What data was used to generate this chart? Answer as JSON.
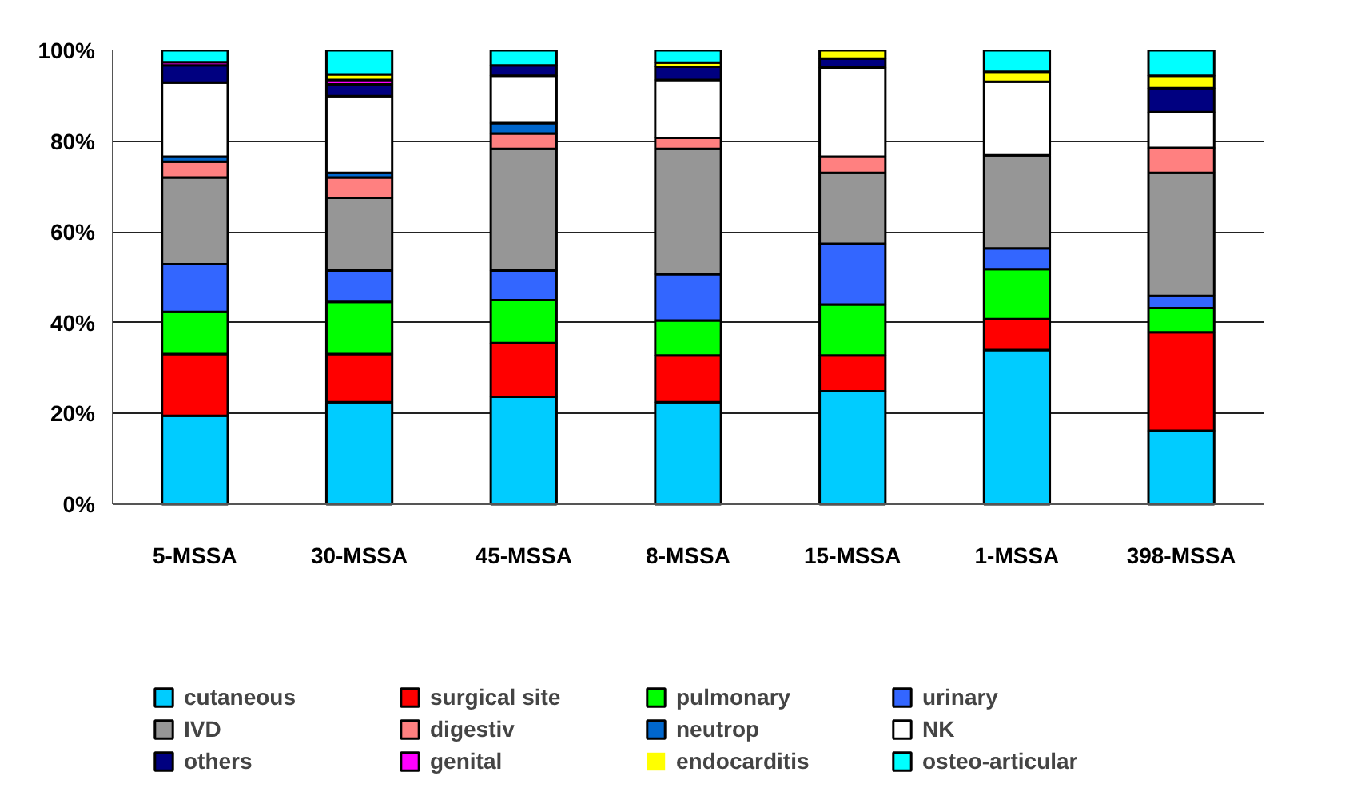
{
  "chart_data": {
    "type": "bar",
    "stacked": true,
    "categories": [
      "5-MSSA",
      "30-MSSA",
      "45-MSSA",
      "8-MSSA",
      "15-MSSA",
      "1-MSSA",
      "398-MSSA"
    ],
    "series": [
      {
        "name": "cutaneous",
        "color": "#00ccff",
        "values": [
          19.5,
          22.5,
          23.7,
          22.5,
          24.9,
          34.0,
          16.2
        ]
      },
      {
        "name": "surgical site",
        "color": "#ff0000",
        "values": [
          13.6,
          10.6,
          11.8,
          10.3,
          7.9,
          6.8,
          21.7
        ]
      },
      {
        "name": "pulmonary",
        "color": "#00ff00",
        "values": [
          9.3,
          11.5,
          9.5,
          7.7,
          11.2,
          11.0,
          5.3
        ]
      },
      {
        "name": "urinary",
        "color": "#3366ff",
        "values": [
          10.5,
          6.9,
          6.5,
          10.2,
          13.4,
          4.6,
          2.7
        ]
      },
      {
        "name": "IVD",
        "color": "#969696",
        "values": [
          19.1,
          16.0,
          26.8,
          27.6,
          15.6,
          20.5,
          27.1
        ]
      },
      {
        "name": "digestiv",
        "color": "#ff8080",
        "values": [
          3.5,
          4.5,
          3.4,
          2.4,
          3.6,
          0,
          5.5
        ]
      },
      {
        "name": "neutrop",
        "color": "#0066cc",
        "values": [
          1.1,
          1.0,
          2.3,
          0,
          0,
          0,
          0
        ]
      },
      {
        "name": "NK",
        "color": "#ffffff",
        "values": [
          16.3,
          16.9,
          10.4,
          12.8,
          19.6,
          16.2,
          7.9
        ]
      },
      {
        "name": "others",
        "color": "#000080",
        "values": [
          3.8,
          2.6,
          2.3,
          2.9,
          2.0,
          0,
          5.3
        ]
      },
      {
        "name": "genital",
        "color": "#ff00ff",
        "values": [
          0.7,
          1.0,
          0,
          0,
          0,
          0,
          0
        ]
      },
      {
        "name": "endocarditis",
        "color": "#ffff00",
        "values": [
          0,
          1.2,
          0,
          0.9,
          1.8,
          2.2,
          2.7
        ]
      },
      {
        "name": "osteo-articular",
        "color": "#00ffff",
        "values": [
          2.6,
          5.3,
          3.3,
          2.7,
          0,
          4.7,
          5.6
        ]
      }
    ],
    "ylim": [
      0,
      100
    ],
    "yticks": [
      {
        "value": 0,
        "label": "0%"
      },
      {
        "value": 20,
        "label": "20%"
      },
      {
        "value": 40,
        "label": "40%"
      },
      {
        "value": 60,
        "label": "60%"
      },
      {
        "value": 80,
        "label": "80%"
      },
      {
        "value": 100,
        "label": "100%"
      }
    ],
    "grid": "y",
    "legend": "bottom"
  }
}
